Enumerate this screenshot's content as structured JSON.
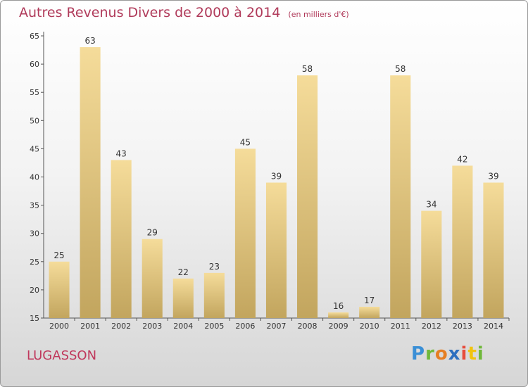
{
  "title": "Autres Revenus Divers de 2000 à 2014",
  "unit": "(en milliers d'€)",
  "place": "LUGASSON",
  "logo": {
    "letters": [
      "P",
      "r",
      "o",
      "x",
      "i",
      "t",
      "i"
    ],
    "colors": [
      "#3a8fd6",
      "#6fb83a",
      "#e67e22",
      "#2c6fbf",
      "#e74c3c",
      "#f1c40f",
      "#6fb83a"
    ]
  },
  "colors": {
    "title": "#b03a5a",
    "bar_top": "#f5dc9a",
    "bar_bottom": "#c2a55e",
    "axis": "#555555"
  },
  "chart_data": {
    "type": "bar",
    "title": "Autres Revenus Divers de 2000 à 2014",
    "categories": [
      "2000",
      "2001",
      "2002",
      "2003",
      "2004",
      "2005",
      "2006",
      "2007",
      "2008",
      "2009",
      "2010",
      "2011",
      "2012",
      "2013",
      "2014"
    ],
    "values": [
      25,
      63,
      43,
      29,
      22,
      23,
      45,
      39,
      58,
      16,
      17,
      58,
      34,
      42,
      39
    ],
    "ylim": [
      15,
      65
    ],
    "yticks": [
      15,
      20,
      25,
      30,
      35,
      40,
      45,
      50,
      55,
      60,
      65
    ],
    "grid": false,
    "legend": "none"
  }
}
